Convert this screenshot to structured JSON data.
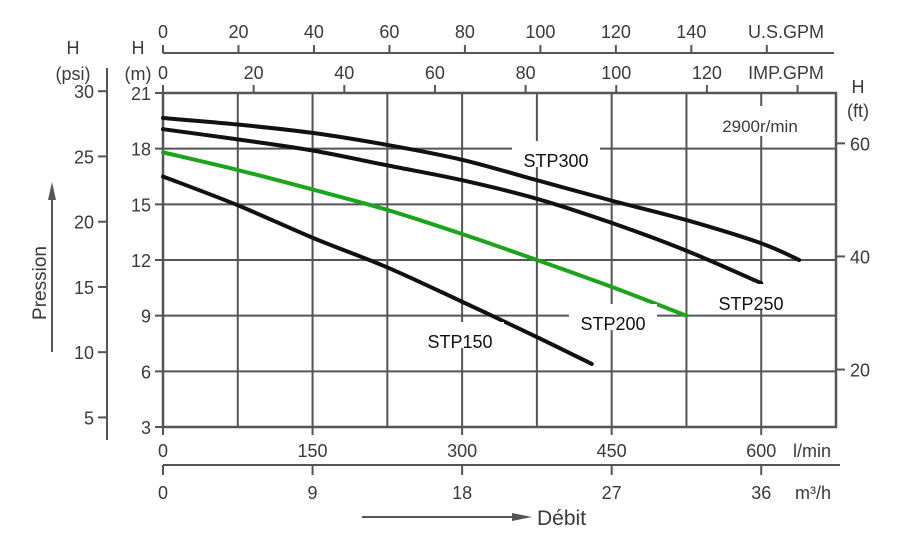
{
  "chart_data": {
    "type": "line",
    "speed_note": "2900r/min",
    "x_axis": {
      "label": "Débit",
      "unit": "l/min",
      "range": [
        0,
        675
      ],
      "ticks": [
        0,
        150,
        300,
        450,
        600
      ],
      "grid_step": 75
    },
    "x_axis_m3h": {
      "unit": "m³/h",
      "ticks": [
        "0",
        "9",
        "18",
        "27",
        "36"
      ]
    },
    "x_axis_us_gpm": {
      "unit": "U.S.GPM",
      "ticks": [
        "0",
        "20",
        "40",
        "60",
        "80",
        "100",
        "120",
        "140"
      ]
    },
    "x_axis_imp_gpm": {
      "unit": "IMP.GPM",
      "ticks": [
        "0",
        "20",
        "40",
        "60",
        "80",
        "100",
        "120"
      ]
    },
    "y_axis": {
      "label": "H",
      "unit": "(m)",
      "range": [
        3,
        21
      ],
      "ticks": [
        3,
        6,
        9,
        12,
        15,
        18,
        21
      ]
    },
    "y_axis_psi": {
      "label": "H",
      "unit": "(psi)",
      "title": "Pression",
      "ticks": [
        5,
        10,
        15,
        20,
        25,
        30
      ]
    },
    "y_axis_ft": {
      "label": "H",
      "unit": "(ft)",
      "ticks": [
        20,
        40,
        60
      ]
    },
    "grid": true,
    "series": [
      {
        "name": "STP300",
        "color": "#111111",
        "x": [
          0,
          75,
          150,
          225,
          300,
          375,
          450,
          525,
          600,
          638
        ],
        "y": [
          19.65,
          19.3,
          18.85,
          18.2,
          17.4,
          16.3,
          15.2,
          14.15,
          12.9,
          12.0
        ]
      },
      {
        "name": "STP250",
        "color": "#111111",
        "x": [
          0,
          75,
          150,
          225,
          300,
          375,
          450,
          525,
          600
        ],
        "y": [
          19.05,
          18.5,
          17.9,
          17.1,
          16.3,
          15.3,
          14.0,
          12.5,
          10.75
        ]
      },
      {
        "name": "STP200",
        "color": "#1aa51a",
        "x": [
          0,
          75,
          150,
          225,
          300,
          375,
          450,
          525
        ],
        "y": [
          17.8,
          16.85,
          15.8,
          14.7,
          13.4,
          12.0,
          10.55,
          9.0
        ]
      },
      {
        "name": "STP150",
        "color": "#111111",
        "x": [
          0,
          75,
          150,
          225,
          300,
          375,
          430
        ],
        "y": [
          16.5,
          14.95,
          13.2,
          11.6,
          9.75,
          7.85,
          6.4
        ]
      }
    ]
  }
}
